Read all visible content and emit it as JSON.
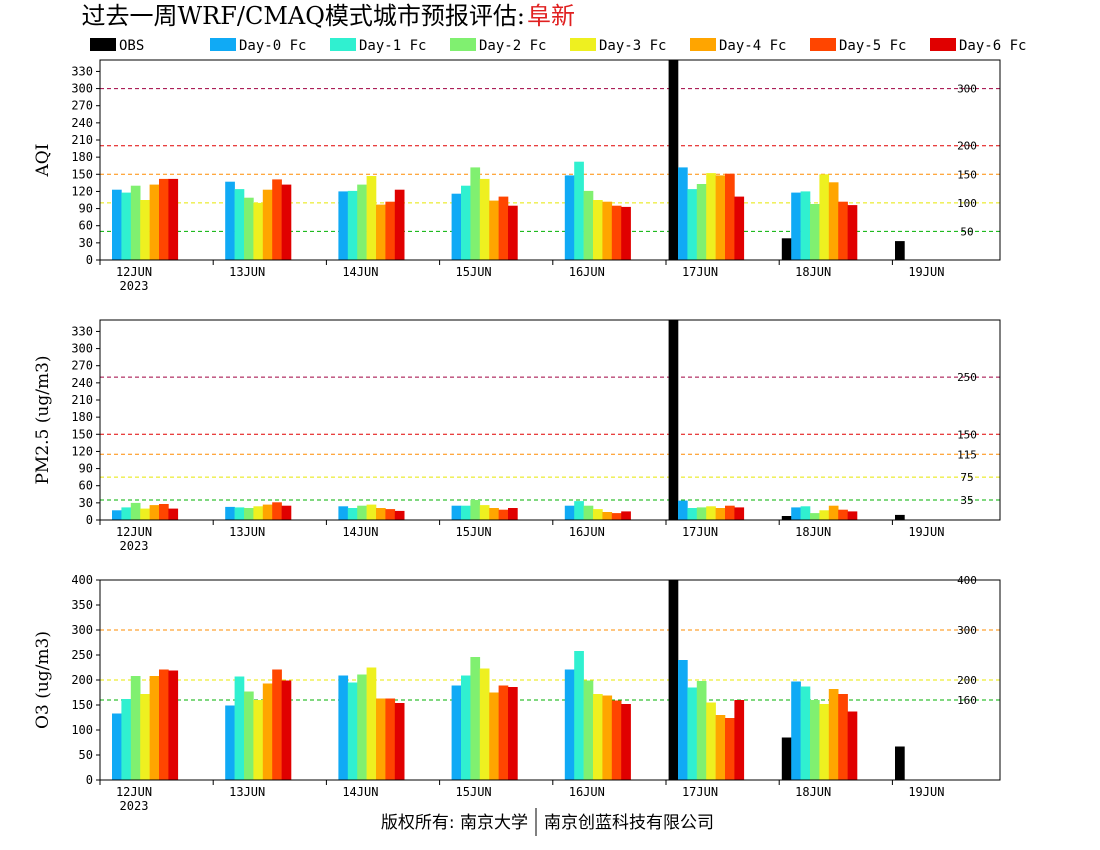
{
  "title": "过去一周WRF/CMAQ模式城市预报评估:",
  "city": "阜新",
  "footer": {
    "left": "版权所有: 南京大学",
    "right": "南京创蓝科技有限公司"
  },
  "colors": {
    "OBS": "#000000",
    "Day-0 Fc": "#10aaf5",
    "Day-1 Fc": "#30f0d0",
    "Day-2 Fc": "#80f070",
    "Day-3 Fc": "#eef020",
    "Day-4 Fc": "#ffa500",
    "Day-5 Fc": "#ff4500",
    "Day-6 Fc": "#e00000"
  },
  "chart_data": [
    {
      "type": "bar",
      "ylabel": "AQI",
      "ylim": [
        0,
        350
      ],
      "yticks": [
        0,
        30,
        60,
        90,
        120,
        150,
        180,
        210,
        240,
        270,
        300,
        330
      ],
      "xtick_labels": [
        "12JUN",
        "13JUN",
        "14JUN",
        "15JUN",
        "16JUN",
        "17JUN",
        "18JUN",
        "19JUN"
      ],
      "year_label": "2023",
      "ref_lines": [
        {
          "value": 50,
          "label": "50",
          "color": "#00b000"
        },
        {
          "value": 100,
          "label": "100",
          "color": "#e8e800"
        },
        {
          "value": 150,
          "label": "150",
          "color": "#ff8c00"
        },
        {
          "value": 200,
          "label": "200",
          "color": "#e00000"
        },
        {
          "value": 300,
          "label": "300",
          "color": "#a00040"
        }
      ],
      "series": [
        {
          "name": "OBS",
          "values": [
            null,
            null,
            null,
            null,
            null,
            350,
            38,
            33
          ]
        },
        {
          "name": "Day-0 Fc",
          "values": [
            123,
            137,
            120,
            116,
            148,
            162,
            118,
            null
          ]
        },
        {
          "name": "Day-1 Fc",
          "values": [
            118,
            124,
            121,
            130,
            172,
            124,
            120,
            null
          ]
        },
        {
          "name": "Day-2 Fc",
          "values": [
            130,
            109,
            132,
            162,
            121,
            133,
            98,
            null
          ]
        },
        {
          "name": "Day-3 Fc",
          "values": [
            105,
            100,
            147,
            142,
            105,
            152,
            150,
            null
          ]
        },
        {
          "name": "Day-4 Fc",
          "values": [
            132,
            123,
            97,
            104,
            102,
            148,
            136,
            null
          ]
        },
        {
          "name": "Day-5 Fc",
          "values": [
            142,
            141,
            102,
            111,
            95,
            151,
            102,
            null
          ]
        },
        {
          "name": "Day-6 Fc",
          "values": [
            142,
            132,
            123,
            95,
            93,
            111,
            96,
            null
          ]
        }
      ]
    },
    {
      "type": "bar",
      "ylabel": "PM2.5 (ug/m3)",
      "ylim": [
        0,
        350
      ],
      "yticks": [
        0,
        30,
        60,
        90,
        120,
        150,
        180,
        210,
        240,
        270,
        300,
        330
      ],
      "xtick_labels": [
        "12JUN",
        "13JUN",
        "14JUN",
        "15JUN",
        "16JUN",
        "17JUN",
        "18JUN",
        "19JUN"
      ],
      "year_label": "2023",
      "ref_lines": [
        {
          "value": 35,
          "label": "35",
          "color": "#00b000"
        },
        {
          "value": 75,
          "label": "75",
          "color": "#e8e800"
        },
        {
          "value": 115,
          "label": "115",
          "color": "#ff8c00"
        },
        {
          "value": 150,
          "label": "150",
          "color": "#e00000"
        },
        {
          "value": 250,
          "label": "250",
          "color": "#a00040"
        }
      ],
      "series": [
        {
          "name": "OBS",
          "values": [
            null,
            null,
            null,
            null,
            null,
            350,
            7,
            9
          ]
        },
        {
          "name": "Day-0 Fc",
          "values": [
            17,
            23,
            24,
            25,
            25,
            34,
            22,
            null
          ]
        },
        {
          "name": "Day-1 Fc",
          "values": [
            22,
            22,
            21,
            25,
            33,
            21,
            24,
            null
          ]
        },
        {
          "name": "Day-2 Fc",
          "values": [
            30,
            21,
            25,
            35,
            25,
            22,
            12,
            null
          ]
        },
        {
          "name": "Day-3 Fc",
          "values": [
            20,
            24,
            27,
            26,
            19,
            24,
            17,
            null
          ]
        },
        {
          "name": "Day-4 Fc",
          "values": [
            26,
            27,
            21,
            21,
            14,
            21,
            25,
            null
          ]
        },
        {
          "name": "Day-5 Fc",
          "values": [
            28,
            31,
            19,
            18,
            12,
            25,
            18,
            null
          ]
        },
        {
          "name": "Day-6 Fc",
          "values": [
            20,
            25,
            16,
            21,
            15,
            22,
            15,
            null
          ]
        }
      ]
    },
    {
      "type": "bar",
      "ylabel": "O3 (ug/m3)",
      "ylim": [
        0,
        400
      ],
      "yticks": [
        0,
        50,
        100,
        150,
        200,
        250,
        300,
        350,
        400
      ],
      "xtick_labels": [
        "12JUN",
        "13JUN",
        "14JUN",
        "15JUN",
        "16JUN",
        "17JUN",
        "18JUN",
        "19JUN"
      ],
      "year_label": "2023",
      "ref_lines": [
        {
          "value": 160,
          "label": "160",
          "color": "#00b000"
        },
        {
          "value": 200,
          "label": "200",
          "color": "#e8e800"
        },
        {
          "value": 300,
          "label": "300",
          "color": "#ff8c00"
        },
        {
          "value": 400,
          "label": "400",
          "color": "#e00000"
        }
      ],
      "series": [
        {
          "name": "OBS",
          "values": [
            null,
            null,
            null,
            null,
            null,
            400,
            85,
            67
          ]
        },
        {
          "name": "Day-0 Fc",
          "values": [
            133,
            149,
            209,
            189,
            221,
            240,
            197,
            null
          ]
        },
        {
          "name": "Day-1 Fc",
          "values": [
            162,
            207,
            195,
            209,
            258,
            185,
            187,
            null
          ]
        },
        {
          "name": "Day-2 Fc",
          "values": [
            208,
            177,
            211,
            246,
            199,
            198,
            160,
            null
          ]
        },
        {
          "name": "Day-3 Fc",
          "values": [
            172,
            160,
            225,
            223,
            172,
            155,
            152,
            null
          ]
        },
        {
          "name": "Day-4 Fc",
          "values": [
            208,
            193,
            163,
            175,
            169,
            130,
            182,
            null
          ]
        },
        {
          "name": "Day-5 Fc",
          "values": [
            221,
            221,
            163,
            189,
            159,
            124,
            172,
            null
          ]
        },
        {
          "name": "Day-6 Fc",
          "values": [
            219,
            199,
            154,
            186,
            152,
            160,
            137,
            null
          ]
        }
      ]
    }
  ]
}
